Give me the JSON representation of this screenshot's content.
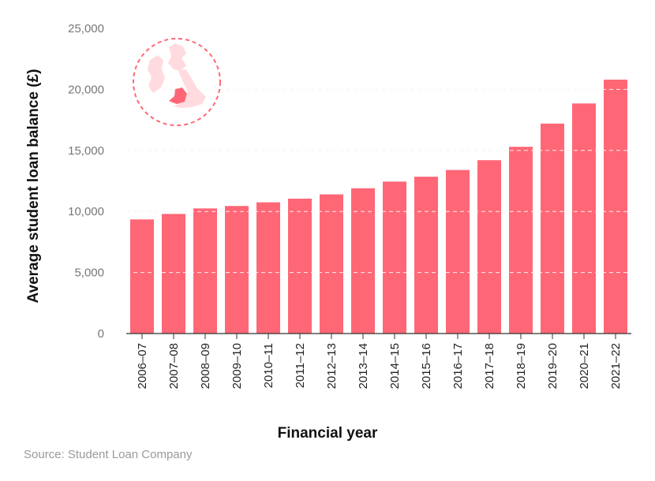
{
  "chart_data": {
    "type": "bar",
    "title": "",
    "xlabel": "Financial year",
    "ylabel": "Average student loan balance (£)",
    "ylim": [
      0,
      25000
    ],
    "yticks": [
      0,
      5000,
      10000,
      15000,
      20000,
      25000
    ],
    "ytick_labels": [
      "0",
      "5,000",
      "10,000",
      "15,000",
      "20,000",
      "25,000"
    ],
    "grid": true,
    "categories": [
      "2006–07",
      "2007–08",
      "2008–09",
      "2009–10",
      "2010–11",
      "2011–12",
      "2012–13",
      "2013–14",
      "2014–15",
      "2015–16",
      "2016–17",
      "2017–18",
      "2018–19",
      "2019–20",
      "2020–21",
      "2021–22"
    ],
    "values": [
      9350,
      9800,
      10250,
      10450,
      10750,
      11050,
      11400,
      11900,
      12450,
      12850,
      13400,
      14200,
      15300,
      17200,
      18850,
      20800
    ],
    "bar_color": "#ff6776",
    "source": "Source: Student Loan Company",
    "inset_icon": "uk-map-wales-highlight-icon"
  }
}
